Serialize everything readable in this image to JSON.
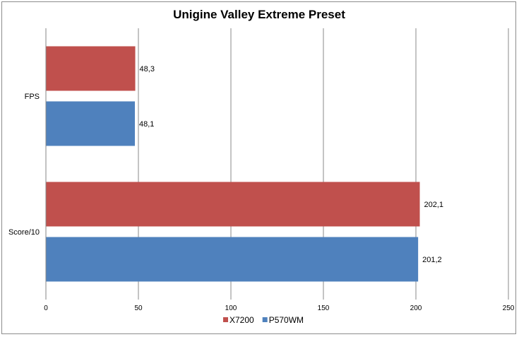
{
  "chart_data": {
    "type": "bar",
    "orientation": "horizontal",
    "title": "Unigine Valley Extreme Preset",
    "categories": [
      "FPS",
      "Score/10"
    ],
    "series": [
      {
        "name": "X7200",
        "color": "#c0504d",
        "values": [
          48.3,
          202.1
        ],
        "labels": [
          "48,3",
          "202,1"
        ]
      },
      {
        "name": "P570WM",
        "color": "#4f81bd",
        "values": [
          48.1,
          201.2
        ],
        "labels": [
          "48,1",
          "201,2"
        ]
      }
    ],
    "xlim": [
      0,
      250
    ],
    "xticks": [
      0,
      50,
      100,
      150,
      200,
      250
    ],
    "xtick_labels": [
      "0",
      "50",
      "100",
      "150",
      "200",
      "250"
    ],
    "grid": "vertical",
    "legend_position": "bottom"
  }
}
